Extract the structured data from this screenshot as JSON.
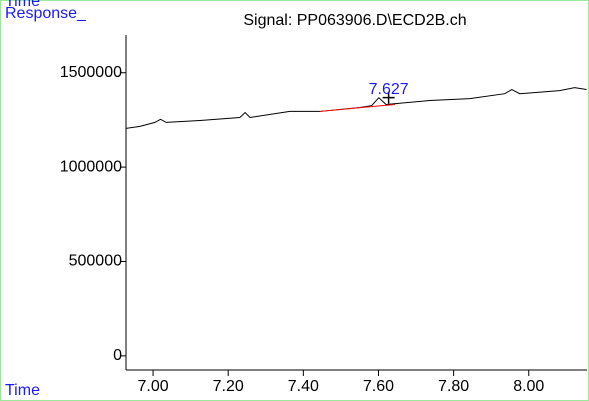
{
  "chart_data": {
    "type": "line",
    "title": "Signal: PP063906.D\\ECD2B.ch",
    "top_label": "Time",
    "ylabel": "Response_",
    "xlabel": "Time",
    "x": [
      6.928,
      6.965,
      7.005,
      7.02,
      7.035,
      7.125,
      7.231,
      7.245,
      7.258,
      7.364,
      7.444,
      7.551,
      7.582,
      7.601,
      7.62,
      7.737,
      7.843,
      7.936,
      7.955,
      7.976,
      8.082,
      8.122,
      8.154
    ],
    "series": [
      {
        "color": "#000000",
        "values": [
          1205000,
          1216000,
          1237000,
          1253000,
          1237000,
          1247000,
          1263000,
          1289000,
          1263000,
          1295000,
          1295000,
          1316000,
          1326000,
          1368000,
          1332000,
          1353000,
          1363000,
          1389000,
          1411000,
          1389000,
          1405000,
          1421000,
          1411000
        ]
      }
    ],
    "baseline": {
      "color": "#ff0000",
      "x": [
        7.444,
        7.644
      ],
      "values": [
        1295000,
        1332000
      ]
    },
    "peaks": [
      7.627
    ],
    "peak_color": "#1a1aff",
    "xlim": [
      6.928,
      8.155
    ],
    "ylim": [
      -75000,
      1700000
    ],
    "xticks": [
      {
        "value": 7.0,
        "label": "7.00"
      },
      {
        "value": 7.2,
        "label": "7.20"
      },
      {
        "value": 7.4,
        "label": "7.40"
      },
      {
        "value": 7.6,
        "label": "7.60"
      },
      {
        "value": 7.8,
        "label": "7.80"
      },
      {
        "value": 8.0,
        "label": "8.00"
      }
    ],
    "yticks": [
      0,
      500000,
      1000000,
      1500000
    ],
    "grid": false
  }
}
